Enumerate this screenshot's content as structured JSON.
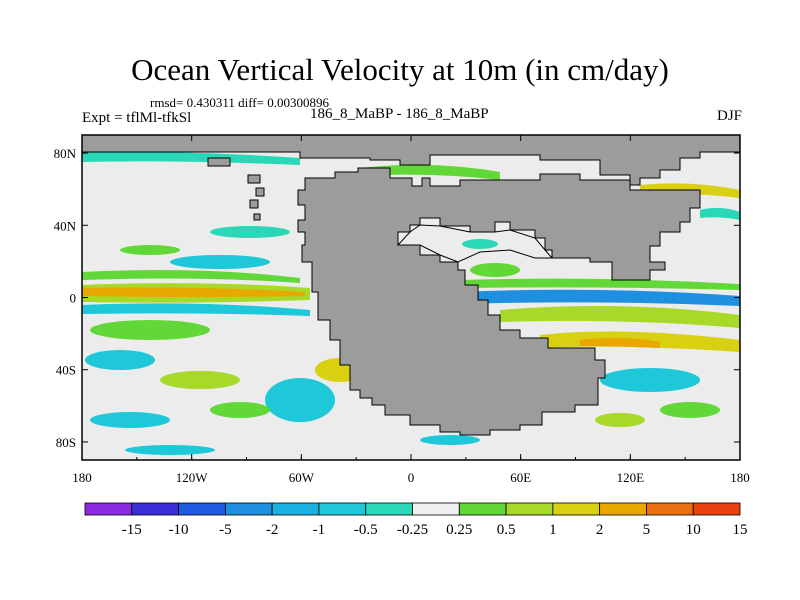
{
  "title": "Ocean Vertical Velocity at 10m (in cm/day)",
  "stats": "rmsd= 0.430311 diff= 0.00300896",
  "experiment": "Expt = tflMl-tfkSl",
  "case_label": "186_8_MaBP - 186_8_MaBP",
  "season": "DJF",
  "colors": {
    "land": "#9c9c9c",
    "ocean_neutral": "#ececec",
    "coast": "#000000"
  },
  "axes": {
    "x_ticks": [
      "180",
      "120W",
      "60W",
      "0",
      "60E",
      "120E",
      "180"
    ],
    "y_ticks": [
      "80N",
      "40N",
      "0",
      "40S",
      "80S"
    ],
    "lon_range": [
      -180,
      180
    ],
    "lat_range": [
      -90,
      90
    ]
  },
  "colorbar": {
    "labels": [
      "-15",
      "-10",
      "-5",
      "-2",
      "-1",
      "-0.5",
      "-0.25",
      "0.25",
      "0.5",
      "1",
      "2",
      "5",
      "10",
      "15"
    ],
    "colors": [
      "#8a2be2",
      "#3a2fd6",
      "#1f5be0",
      "#1f8fe0",
      "#1ab0e0",
      "#1fc8d8",
      "#2ad8b8",
      "#f0f0f0",
      "#62d838",
      "#a8d828",
      "#d8d010",
      "#e8a800",
      "#e87010",
      "#e84010"
    ]
  }
}
